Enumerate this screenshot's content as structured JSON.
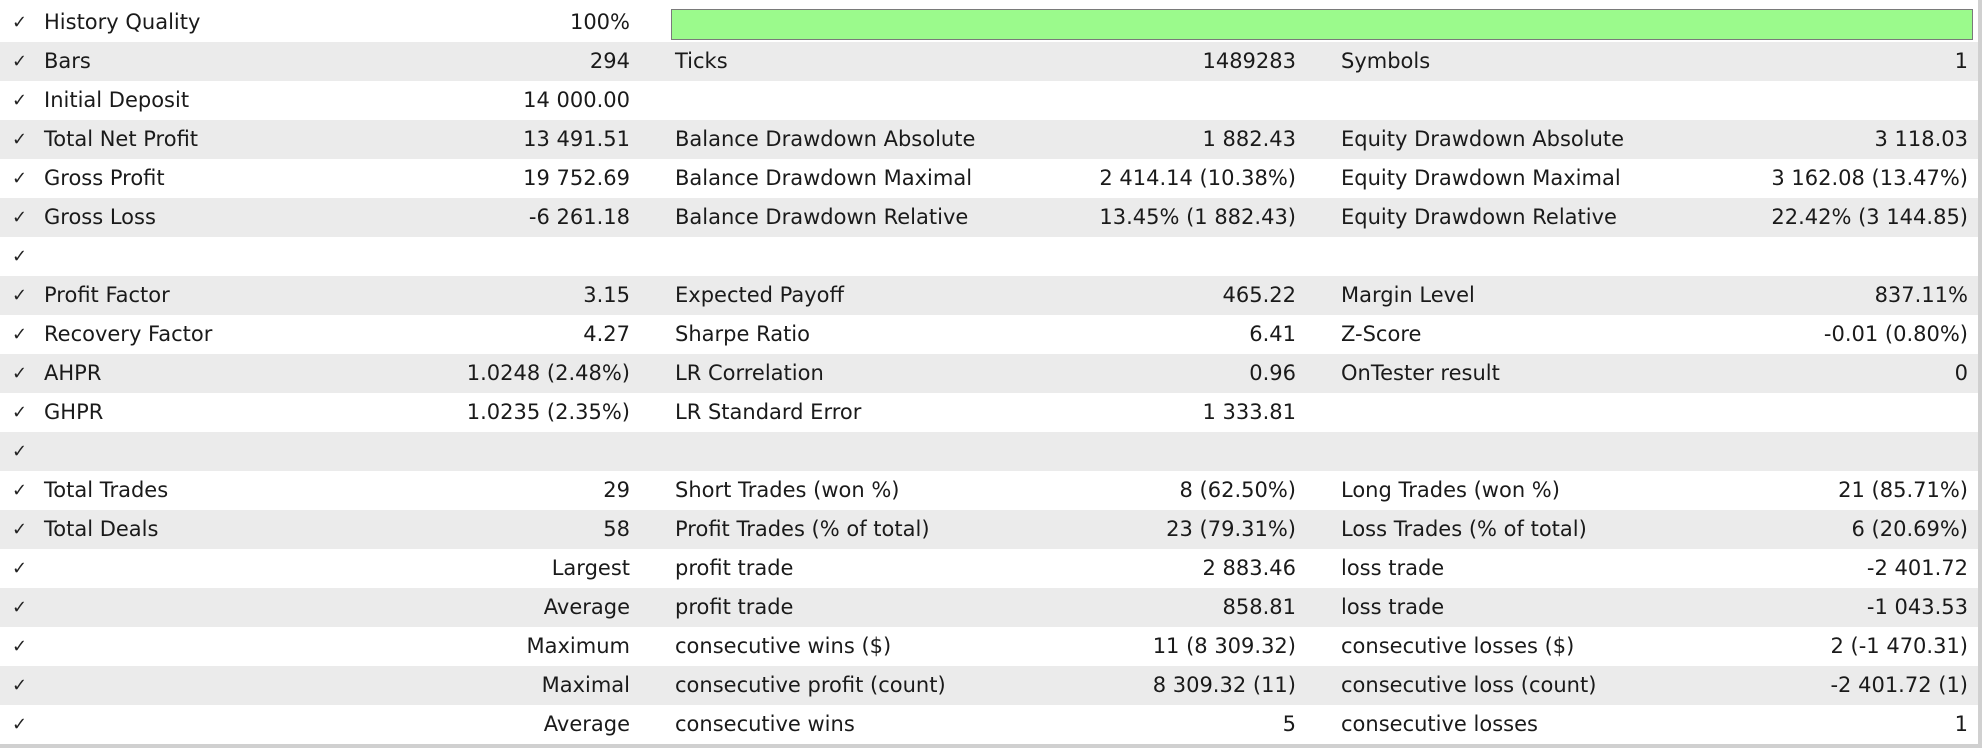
{
  "check_glyph": "✓",
  "history_quality": {
    "label": "History Quality",
    "value": "100%",
    "fill_fraction": 1.0,
    "bar_color": "#9bfa8c"
  },
  "bars": {
    "label": "Bars",
    "value": "294",
    "ticks_label": "Ticks",
    "ticks_value": "1489283",
    "symbols_label": "Symbols",
    "symbols_value": "1"
  },
  "initial_deposit": {
    "label": "Initial Deposit",
    "value": "14 000.00"
  },
  "net_profit": {
    "label": "Total Net Profit",
    "value": "13 491.51",
    "l2": "Balance Drawdown Absolute",
    "v2": "1 882.43",
    "l3": "Equity Drawdown Absolute",
    "v3": "3 118.03"
  },
  "gross_profit": {
    "label": "Gross Profit",
    "value": "19 752.69",
    "l2": "Balance Drawdown Maximal",
    "v2": "2 414.14 (10.38%)",
    "l3": "Equity Drawdown Maximal",
    "v3": "3 162.08 (13.47%)"
  },
  "gross_loss": {
    "label": "Gross Loss",
    "value": "-6 261.18",
    "l2": "Balance Drawdown Relative",
    "v2": "13.45% (1 882.43)",
    "l3": "Equity Drawdown Relative",
    "v3": "22.42% (3 144.85)"
  },
  "profit_factor": {
    "label": "Profit Factor",
    "value": "3.15",
    "l2": "Expected Payoff",
    "v2": "465.22",
    "l3": "Margin Level",
    "v3": "837.11%"
  },
  "recovery_factor": {
    "label": "Recovery Factor",
    "value": "4.27",
    "l2": "Sharpe Ratio",
    "v2": "6.41",
    "l3": "Z-Score",
    "v3": "-0.01 (0.80%)"
  },
  "ahpr": {
    "label": "AHPR",
    "value": "1.0248 (2.48%)",
    "l2": "LR Correlation",
    "v2": "0.96",
    "l3": "OnTester result",
    "v3": "0"
  },
  "ghpr": {
    "label": "GHPR",
    "value": "1.0235 (2.35%)",
    "l2": "LR Standard Error",
    "v2": "1 333.81"
  },
  "total_trades": {
    "label": "Total Trades",
    "value": "29",
    "l2": "Short Trades (won %)",
    "v2": "8 (62.50%)",
    "l3": "Long Trades (won %)",
    "v3": "21 (85.71%)"
  },
  "total_deals": {
    "label": "Total Deals",
    "value": "58",
    "l2": "Profit Trades (% of total)",
    "v2": "23 (79.31%)",
    "l3": "Loss Trades (% of total)",
    "v3": "6 (20.69%)"
  },
  "largest": {
    "label": "Largest",
    "l2": "profit trade",
    "v2": "2 883.46",
    "l3": "loss trade",
    "v3": "-2 401.72"
  },
  "average": {
    "label": "Average",
    "l2": "profit trade",
    "v2": "858.81",
    "l3": "loss trade",
    "v3": "-1 043.53"
  },
  "maximum": {
    "label": "Maximum",
    "l2": "consecutive wins ($)",
    "v2": "11 (8 309.32)",
    "l3": "consecutive losses ($)",
    "v3": "2 (-1 470.31)"
  },
  "maximal": {
    "label": "Maximal",
    "l2": "consecutive profit (count)",
    "v2": "8 309.32 (11)",
    "l3": "consecutive loss (count)",
    "v3": "-2 401.72 (1)"
  },
  "average_consec": {
    "label": "Average",
    "l2": "consecutive wins",
    "v2": "5",
    "l3": "consecutive losses",
    "v3": "1"
  }
}
